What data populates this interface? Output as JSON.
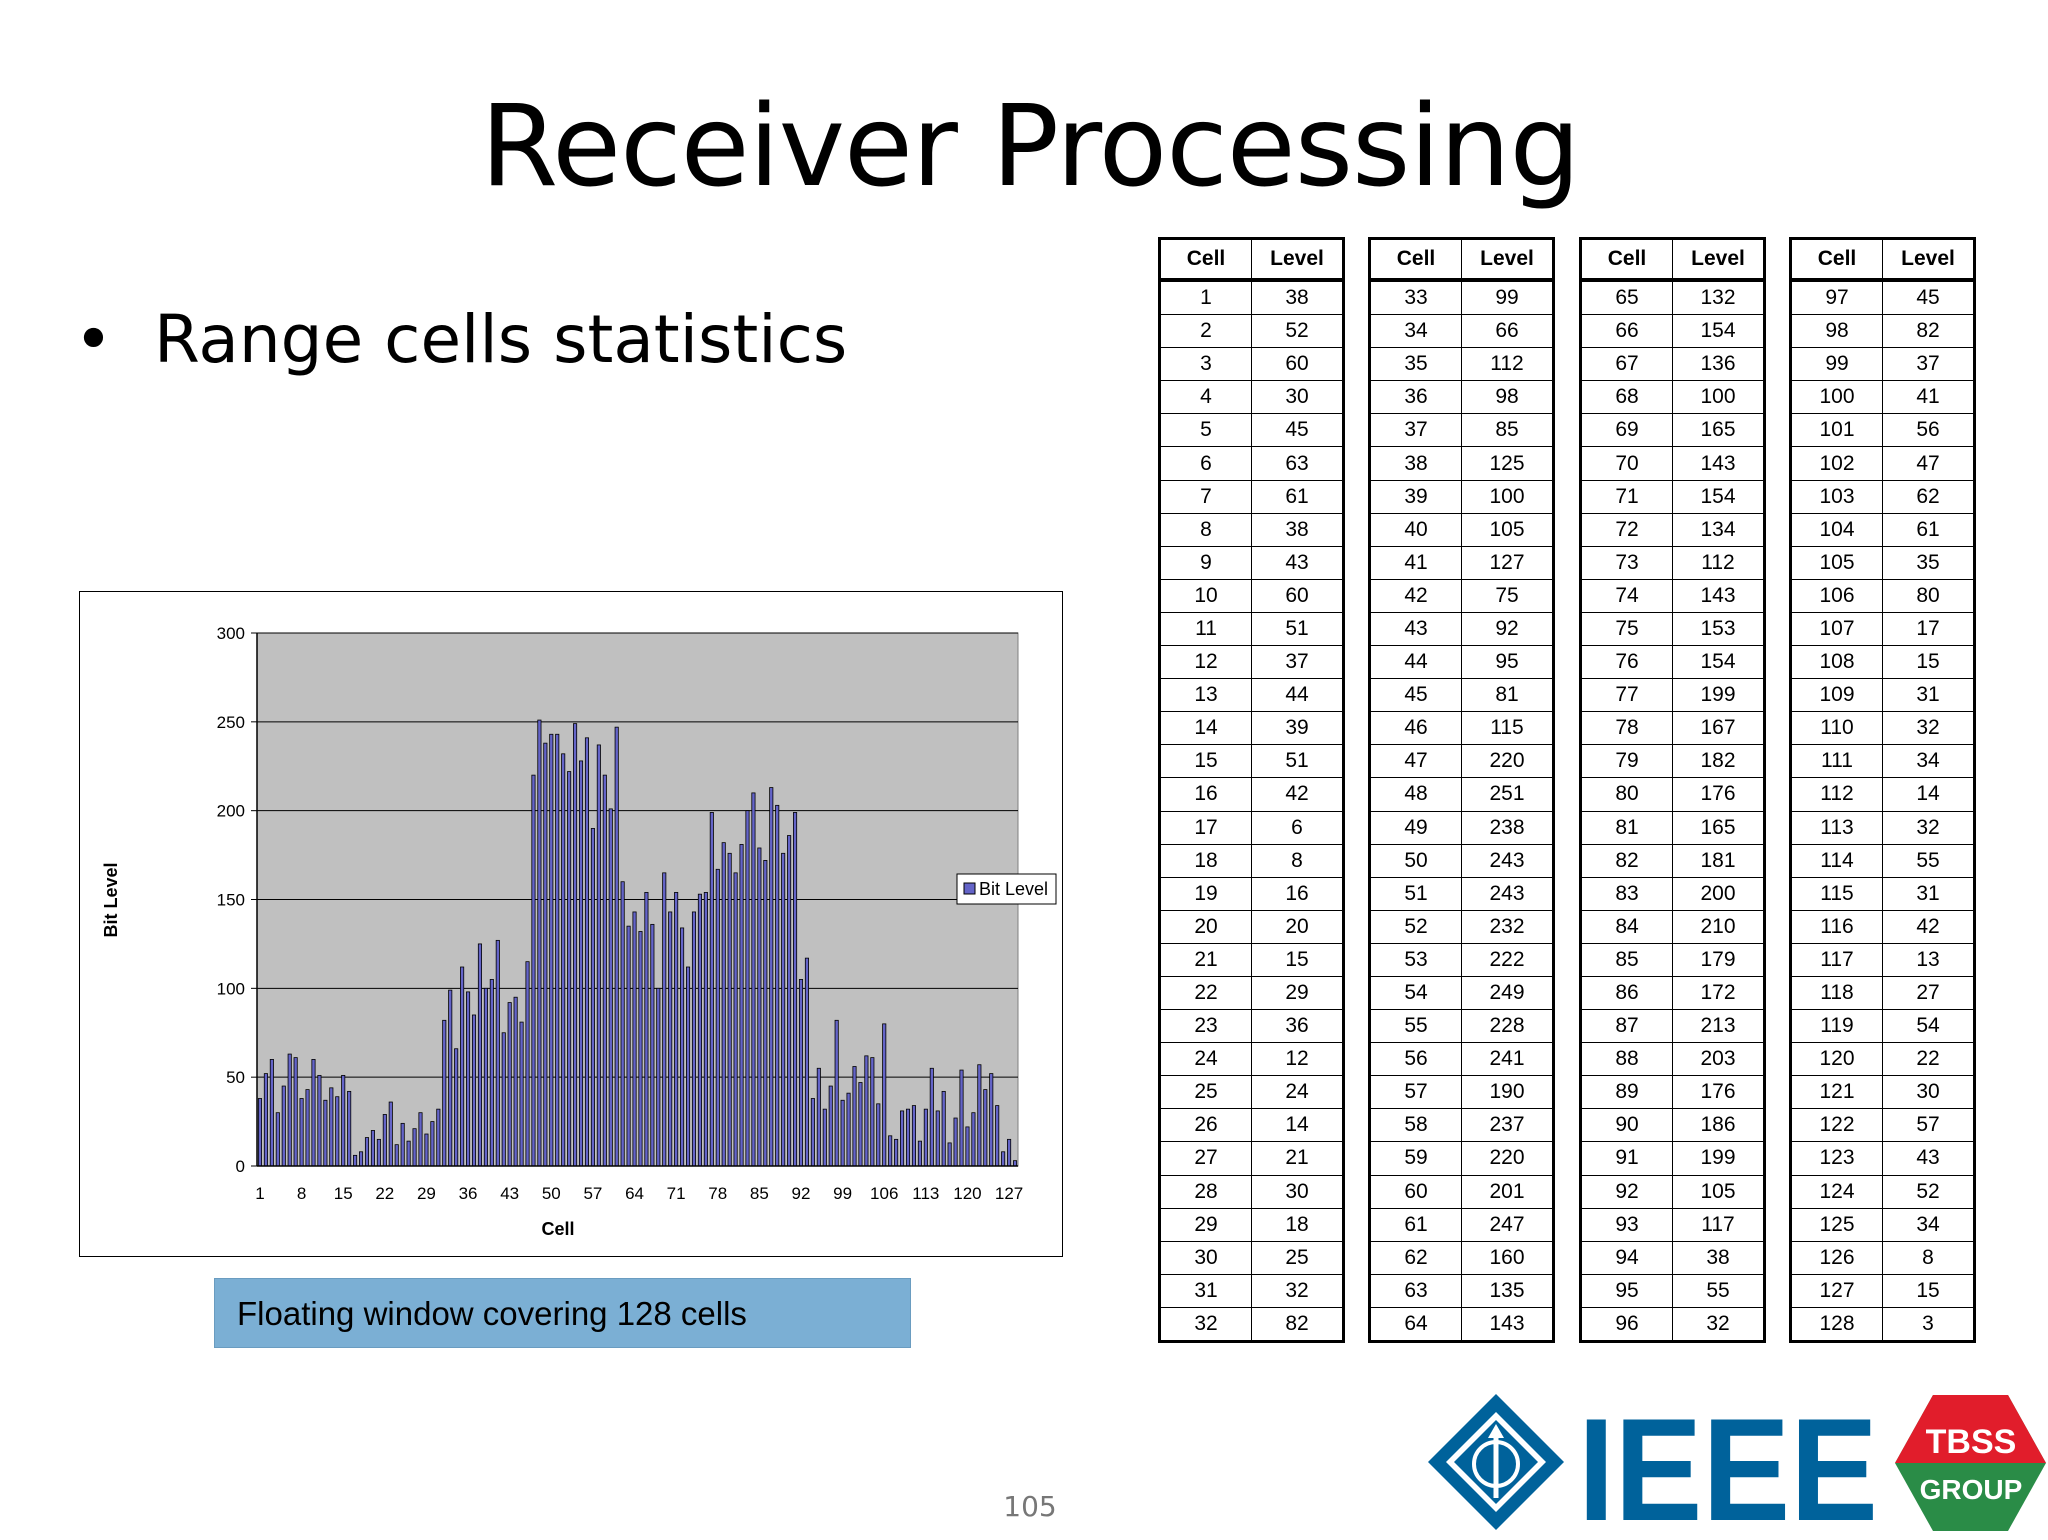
{
  "slide": {
    "title": "Receiver Processing",
    "bullet": "Range cells statistics",
    "caption": "Floating window covering 128 cells",
    "page_number": "105"
  },
  "logos": {
    "ieee_text": "IEEE",
    "tbss_line1": "TBSS",
    "tbss_line2": "GROUP"
  },
  "colors": {
    "bar_fill": "#3a3a8c",
    "plot_bg": "#c0c0c0",
    "caption_bg": "#7bafd4",
    "ieee_blue": "#00629b",
    "tbss_red": "#e11d2b",
    "tbss_green": "#2a8c47"
  },
  "table": {
    "headers": [
      "Cell",
      "Level"
    ]
  },
  "chart_data": {
    "type": "bar",
    "title": "",
    "xlabel": "Cell",
    "ylabel": "Bit Level",
    "ylim": [
      0,
      300
    ],
    "yticks": [
      "0",
      "50",
      "100",
      "150",
      "200",
      "250",
      "300"
    ],
    "xtick_labels": [
      "1",
      "8",
      "15",
      "22",
      "29",
      "36",
      "43",
      "50",
      "57",
      "64",
      "71",
      "78",
      "85",
      "92",
      "99",
      "106",
      "113",
      "120",
      "127"
    ],
    "legend": [
      "Bit Level"
    ],
    "legend_position": "right",
    "grid": true,
    "categories": [
      1,
      2,
      3,
      4,
      5,
      6,
      7,
      8,
      9,
      10,
      11,
      12,
      13,
      14,
      15,
      16,
      17,
      18,
      19,
      20,
      21,
      22,
      23,
      24,
      25,
      26,
      27,
      28,
      29,
      30,
      31,
      32,
      33,
      34,
      35,
      36,
      37,
      38,
      39,
      40,
      41,
      42,
      43,
      44,
      45,
      46,
      47,
      48,
      49,
      50,
      51,
      52,
      53,
      54,
      55,
      56,
      57,
      58,
      59,
      60,
      61,
      62,
      63,
      64,
      65,
      66,
      67,
      68,
      69,
      70,
      71,
      72,
      73,
      74,
      75,
      76,
      77,
      78,
      79,
      80,
      81,
      82,
      83,
      84,
      85,
      86,
      87,
      88,
      89,
      90,
      91,
      92,
      93,
      94,
      95,
      96,
      97,
      98,
      99,
      100,
      101,
      102,
      103,
      104,
      105,
      106,
      107,
      108,
      109,
      110,
      111,
      112,
      113,
      114,
      115,
      116,
      117,
      118,
      119,
      120,
      121,
      122,
      123,
      124,
      125,
      126,
      127,
      128
    ],
    "values": [
      38,
      52,
      60,
      30,
      45,
      63,
      61,
      38,
      43,
      60,
      51,
      37,
      44,
      39,
      51,
      42,
      6,
      8,
      16,
      20,
      15,
      29,
      36,
      12,
      24,
      14,
      21,
      30,
      18,
      25,
      32,
      82,
      99,
      66,
      112,
      98,
      85,
      125,
      100,
      105,
      127,
      75,
      92,
      95,
      81,
      115,
      220,
      251,
      238,
      243,
      243,
      232,
      222,
      249,
      228,
      241,
      190,
      237,
      220,
      201,
      247,
      160,
      135,
      143,
      132,
      154,
      136,
      100,
      165,
      143,
      154,
      134,
      112,
      143,
      153,
      154,
      199,
      167,
      182,
      176,
      165,
      181,
      200,
      210,
      179,
      172,
      213,
      203,
      176,
      186,
      199,
      105,
      117,
      38,
      55,
      32,
      45,
      82,
      37,
      41,
      56,
      47,
      62,
      61,
      35,
      80,
      17,
      15,
      31,
      32,
      34,
      14,
      32,
      55,
      31,
      42,
      13,
      27,
      54,
      22,
      30,
      57,
      43,
      52,
      34,
      8,
      15,
      3
    ]
  }
}
